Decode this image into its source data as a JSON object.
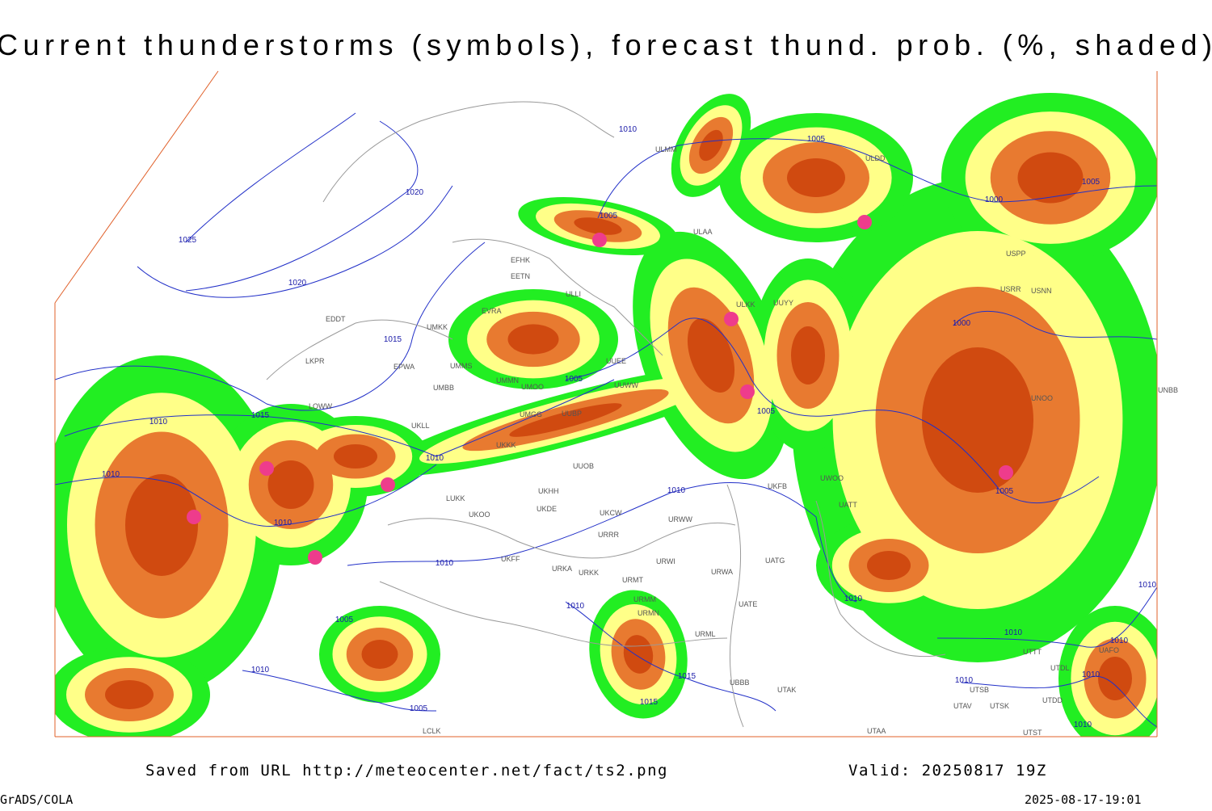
{
  "header": {
    "title": "Current thunderstorms (symbols), forecast thund. prob. (%, shaded)"
  },
  "map": {
    "isobar_labels": [
      "1010",
      "1010",
      "1015",
      "1010",
      "1010",
      "1005",
      "1010",
      "1005",
      "1020",
      "1025",
      "1020",
      "1015",
      "1005",
      "1005",
      "1000",
      "1005",
      "1000",
      "1005",
      "1010",
      "1010",
      "1005",
      "1010",
      "1005",
      "1010",
      "1015",
      "1015",
      "1010",
      "1010",
      "1010",
      "1010",
      "1010",
      "1010",
      "1010"
    ],
    "station_labels": [
      "EFHK",
      "EETN",
      "EVRA",
      "EDDT",
      "UMKK",
      "EPWA",
      "UMMS",
      "LKPR",
      "UMBB",
      "LOWW",
      "UKLL",
      "UMGG",
      "UUBP",
      "UKKK",
      "UUOB",
      "UKHH",
      "LUKK",
      "UKOO",
      "UKDE",
      "UKCW",
      "URRR",
      "UKFF",
      "URKA",
      "URKK",
      "URWW",
      "URWI",
      "URMT",
      "URMM",
      "URMN",
      "URML",
      "UBBB",
      "UATG",
      "URWA",
      "UATE",
      "UATT",
      "UWOO",
      "UKFB",
      "ULAA",
      "ULLI",
      "UUYY",
      "ULKK",
      "UMMN",
      "UMOO",
      "UUEE",
      "UUWW",
      "ULDD",
      "ULMM",
      "USRR",
      "USNN",
      "USPP",
      "UNBB",
      "UNOO",
      "UTTT",
      "UTDL",
      "UAFO",
      "UTSB",
      "UTAV",
      "UTSK",
      "UTST",
      "UTAA",
      "UTAK",
      "LCLK",
      "UTDD"
    ]
  },
  "footer": {
    "saved": "Saved from URL http://meteocenter.net/fact/ts2.png",
    "valid": "Valid: 20250817 19Z",
    "software": "GrADS/COLA",
    "timestamp": "2025-08-17-19:01"
  }
}
